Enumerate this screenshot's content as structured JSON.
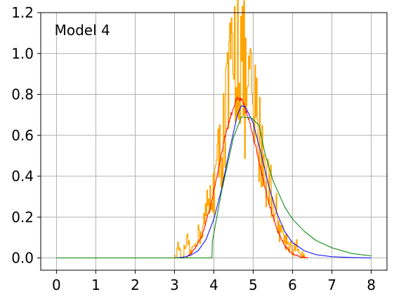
{
  "chart_data": {
    "type": "line",
    "title": "",
    "xlabel": "",
    "ylabel": "",
    "xlim": [
      -0.4,
      8.4
    ],
    "ylim": [
      -0.06,
      1.2
    ],
    "x_ticks": [
      0,
      1,
      2,
      3,
      4,
      5,
      6,
      7,
      8
    ],
    "x_tick_labels": [
      "0",
      "1",
      "2",
      "3",
      "4",
      "5",
      "6",
      "7",
      "8"
    ],
    "y_ticks": [
      0.0,
      0.2,
      0.4,
      0.6,
      0.8,
      1.0,
      1.2
    ],
    "y_tick_labels": [
      "0.0",
      "0.2",
      "0.4",
      "0.6",
      "0.8",
      "1.0",
      "1.2"
    ],
    "grid": true,
    "annotation": "Model 4",
    "series": [
      {
        "color": "#ffa500",
        "style": "noisy-histogram",
        "x": [
          3.0,
          3.1,
          3.2,
          3.3,
          3.4,
          3.5,
          3.6,
          3.7,
          3.8,
          3.9,
          4.0,
          4.1,
          4.2,
          4.3,
          4.4,
          4.5,
          4.6,
          4.7,
          4.8,
          4.9,
          5.0,
          5.1,
          5.2,
          5.3,
          5.4,
          5.5,
          5.6,
          5.7,
          5.8,
          5.9,
          6.0,
          6.1,
          6.2,
          6.3
        ],
        "y": [
          0.0,
          0.06,
          0.0,
          0.08,
          0.03,
          0.06,
          0.12,
          0.15,
          0.22,
          0.28,
          0.38,
          0.45,
          0.6,
          0.68,
          0.85,
          0.9,
          1.15,
          0.95,
          0.8,
          0.78,
          0.7,
          0.65,
          0.55,
          0.45,
          0.38,
          0.3,
          0.2,
          0.14,
          0.1,
          0.07,
          0.04,
          0.05,
          0.02,
          0.0
        ]
      },
      {
        "color": "#ff0000",
        "style": "noisy-line",
        "x": [
          3.3,
          3.5,
          3.7,
          3.9,
          4.1,
          4.3,
          4.5,
          4.6,
          4.7,
          4.8,
          5.0,
          5.2,
          5.4,
          5.6,
          5.8,
          6.0,
          6.2,
          6.4
        ],
        "y": [
          0.0,
          0.04,
          0.11,
          0.24,
          0.42,
          0.61,
          0.74,
          0.78,
          0.77,
          0.73,
          0.6,
          0.43,
          0.27,
          0.14,
          0.06,
          0.02,
          0.005,
          0.0
        ]
      },
      {
        "color": "#0000ff",
        "style": "line",
        "x": [
          0.0,
          3.0,
          3.2,
          3.4,
          3.6,
          3.8,
          4.0,
          4.2,
          4.4,
          4.6,
          4.7,
          4.8,
          5.0,
          5.2,
          5.4,
          5.6,
          5.8,
          6.0,
          6.3,
          6.6,
          7.0,
          7.5,
          8.0
        ],
        "y": [
          0.0,
          0.0,
          0.003,
          0.012,
          0.035,
          0.09,
          0.19,
          0.34,
          0.53,
          0.7,
          0.745,
          0.74,
          0.66,
          0.51,
          0.35,
          0.22,
          0.13,
          0.075,
          0.035,
          0.016,
          0.006,
          0.002,
          0.0
        ]
      },
      {
        "color": "#008000",
        "style": "line",
        "x": [
          0.0,
          3.95,
          3.96,
          4.2,
          4.5,
          4.7,
          4.95,
          5.15,
          5.3,
          5.5,
          5.8,
          6.0,
          6.3,
          6.6,
          7.0,
          7.5,
          8.0
        ],
        "y": [
          0.0,
          0.0,
          0.08,
          0.33,
          0.59,
          0.69,
          0.685,
          0.65,
          0.51,
          0.38,
          0.25,
          0.19,
          0.13,
          0.085,
          0.05,
          0.022,
          0.01
        ]
      }
    ]
  }
}
